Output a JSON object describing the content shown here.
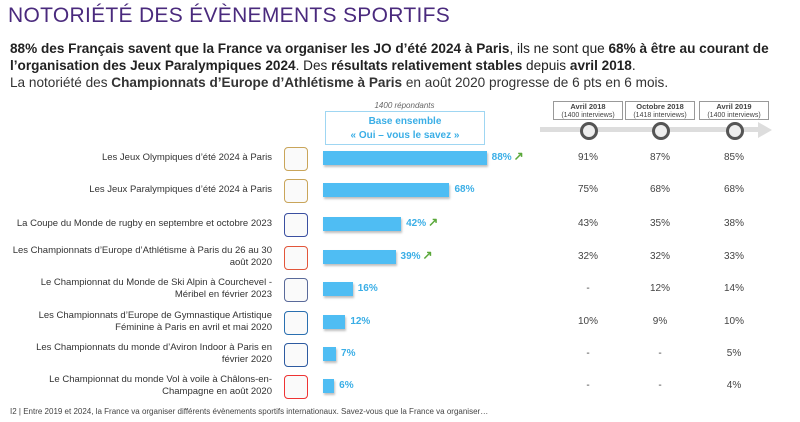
{
  "title": "NOTORIÉTÉ DES ÉVÈNEMENTS SPORTIFS",
  "intro": {
    "p1a": "88% des Français savent que la France va organiser les JO d’été 2024 à Paris",
    "p1b": ", ils ne sont que ",
    "p1c": "68% à être au courant de l’organisation des Jeux Paralympiques 2024",
    "p1d": ". Des ",
    "p1e": "résultats relativement stables",
    "p1f": " depuis ",
    "p1g": "avril 2018",
    "p1h": ".",
    "p2a": "La notoriété des ",
    "p2b": "Championnats d’Europe d’Athlétisme à Paris",
    "p2c": " en août 2020 progresse de 6 pts en 6 mois."
  },
  "respondents": "1400 répondants",
  "base": {
    "line1": "Base ensemble",
    "line2": "« Oui – vous le savez »"
  },
  "history_headers": [
    {
      "label": "Avril 2018",
      "sub": "(1400 interviews)"
    },
    {
      "label": "Octobre 2018",
      "sub": "(1418 interviews)"
    },
    {
      "label": "Avril 2019",
      "sub": "(1400 interviews)"
    }
  ],
  "colors": {
    "bar": "#4fbdf3",
    "title": "#4a2a7d",
    "arrow": "#5aa83a"
  },
  "chart_data": {
    "type": "bar",
    "orientation": "horizontal",
    "title": "Base ensemble « Oui – vous le savez »",
    "categories": [
      "Les Jeux Olympiques d’été 2024 à Paris",
      "Les Jeux Paralympiques d’été 2024 à Paris",
      "La Coupe du Monde de rugby en septembre et octobre 2023",
      "Les Championnats d’Europe d’Athlétisme à Paris du 26 au 30 août 2020",
      "Le Championnat du Monde de Ski Alpin à Courchevel - Méribel en février 2023",
      "Les Championnats d’Europe de Gymnastique Artistique Féminine à Paris en avril et mai 2020",
      "Les Championnats du monde d’Aviron Indoor à Paris en février 2020",
      "Le Championnat du monde Vol à voile à Châlons-en-Champagne en août 2020"
    ],
    "values": [
      88,
      68,
      42,
      39,
      16,
      12,
      7,
      6
    ],
    "value_labels": [
      "88%",
      "68%",
      "42%",
      "39%",
      "16%",
      "12%",
      "7%",
      "6%"
    ],
    "trend_up": [
      true,
      false,
      true,
      true,
      false,
      false,
      false,
      false
    ],
    "history": [
      [
        "91%",
        "87%",
        "85%"
      ],
      [
        "75%",
        "68%",
        "68%"
      ],
      [
        "43%",
        "35%",
        "38%"
      ],
      [
        "32%",
        "32%",
        "33%"
      ],
      [
        "-",
        "12%",
        "14%"
      ],
      [
        "10%",
        "9%",
        "10%"
      ],
      [
        "-",
        "-",
        "5%"
      ],
      [
        "-",
        "-",
        "4%"
      ]
    ],
    "xlim": [
      0,
      100
    ]
  },
  "footer": "I2 | Entre 2019 et 2024, la France va organiser différents évènements sportifs internationaux. Savez-vous que la France va organiser…"
}
